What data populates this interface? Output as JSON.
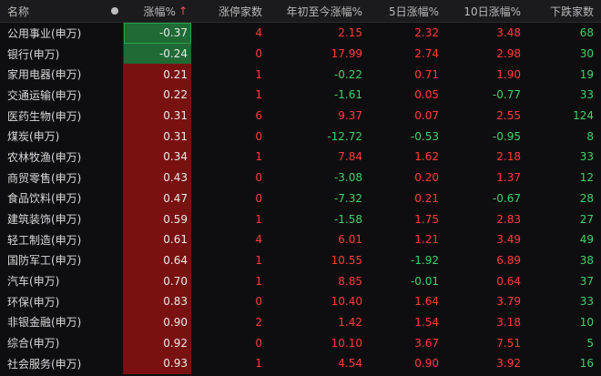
{
  "headers": {
    "name": "名称",
    "change": "涨幅%",
    "limit_up": "涨停家数",
    "ytd": "年初至今涨幅%",
    "d5": "5日涨幅%",
    "d10": "10日涨幅%",
    "down": "下跌家数"
  },
  "sort_icon": "arrow-up-icon",
  "colors": {
    "up": "#ff3b3b",
    "down": "#3fd16a",
    "up_bg": "#7a1111",
    "down_bg": "#1f6a35"
  },
  "rows": [
    {
      "name": "公用事业(申万)",
      "change": "-0.37",
      "limit_up": "4",
      "ytd": "2.15",
      "d5": "2.32",
      "d10": "3.48",
      "down": "68"
    },
    {
      "name": "银行(申万)",
      "change": "-0.24",
      "limit_up": "0",
      "ytd": "17.99",
      "d5": "2.74",
      "d10": "2.98",
      "down": "30"
    },
    {
      "name": "家用电器(申万)",
      "change": "0.21",
      "limit_up": "1",
      "ytd": "-0.22",
      "d5": "0.71",
      "d10": "1.90",
      "down": "19"
    },
    {
      "name": "交通运输(申万)",
      "change": "0.22",
      "limit_up": "1",
      "ytd": "-1.61",
      "d5": "0.05",
      "d10": "-0.77",
      "down": "33"
    },
    {
      "name": "医药生物(申万)",
      "change": "0.31",
      "limit_up": "6",
      "ytd": "9.37",
      "d5": "0.07",
      "d10": "2.55",
      "down": "124"
    },
    {
      "name": "煤炭(申万)",
      "change": "0.31",
      "limit_up": "0",
      "ytd": "-12.72",
      "d5": "-0.53",
      "d10": "-0.95",
      "down": "8"
    },
    {
      "name": "农林牧渔(申万)",
      "change": "0.34",
      "limit_up": "1",
      "ytd": "7.84",
      "d5": "1.62",
      "d10": "2.18",
      "down": "33"
    },
    {
      "name": "商贸零售(申万)",
      "change": "0.43",
      "limit_up": "0",
      "ytd": "-3.08",
      "d5": "0.20",
      "d10": "1.37",
      "down": "12"
    },
    {
      "name": "食品饮料(申万)",
      "change": "0.47",
      "limit_up": "0",
      "ytd": "-7.32",
      "d5": "0.21",
      "d10": "-0.67",
      "down": "28"
    },
    {
      "name": "建筑装饰(申万)",
      "change": "0.59",
      "limit_up": "1",
      "ytd": "-1.58",
      "d5": "1.75",
      "d10": "2.83",
      "down": "27"
    },
    {
      "name": "轻工制造(申万)",
      "change": "0.61",
      "limit_up": "4",
      "ytd": "6.01",
      "d5": "1.21",
      "d10": "3.49",
      "down": "49"
    },
    {
      "name": "国防军工(申万)",
      "change": "0.64",
      "limit_up": "1",
      "ytd": "10.55",
      "d5": "-1.92",
      "d10": "6.89",
      "down": "38"
    },
    {
      "name": "汽车(申万)",
      "change": "0.70",
      "limit_up": "1",
      "ytd": "8.85",
      "d5": "-0.01",
      "d10": "0.64",
      "down": "37"
    },
    {
      "name": "环保(申万)",
      "change": "0.83",
      "limit_up": "0",
      "ytd": "10.40",
      "d5": "1.64",
      "d10": "3.79",
      "down": "33"
    },
    {
      "name": "非银金融(申万)",
      "change": "0.90",
      "limit_up": "2",
      "ytd": "1.42",
      "d5": "1.54",
      "d10": "3.18",
      "down": "10"
    },
    {
      "name": "综合(申万)",
      "change": "0.92",
      "limit_up": "0",
      "ytd": "10.10",
      "d5": "3.67",
      "d10": "7.51",
      "down": "5"
    },
    {
      "name": "社会服务(申万)",
      "change": "0.93",
      "limit_up": "1",
      "ytd": "4.54",
      "d5": "0.90",
      "d10": "3.92",
      "down": "16"
    }
  ]
}
